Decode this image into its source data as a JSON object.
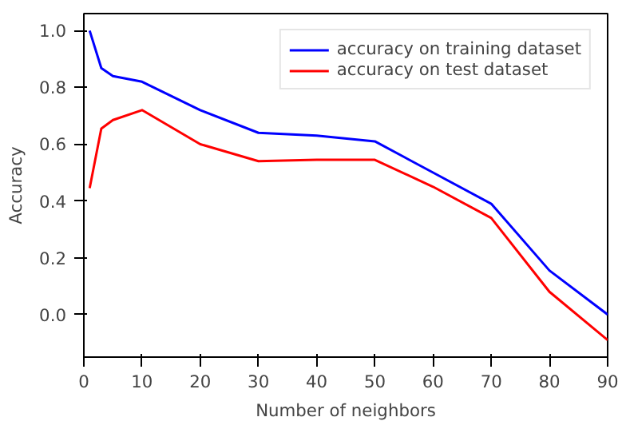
{
  "chart_data": {
    "type": "line",
    "xlabel": "Number of neighbors",
    "ylabel": "Accuracy",
    "x": [
      1,
      3,
      5,
      10,
      20,
      30,
      40,
      50,
      60,
      70,
      80,
      90
    ],
    "series": [
      {
        "name": "accuracy on training dataset",
        "color": "#0000ff",
        "values": [
          1.0,
          0.868,
          0.84,
          0.82,
          0.72,
          0.64,
          0.63,
          0.61,
          0.5,
          0.39,
          0.155,
          0.0
        ]
      },
      {
        "name": "accuracy on test dataset",
        "color": "#ff0000",
        "values": [
          0.445,
          0.655,
          0.685,
          0.72,
          0.6,
          0.54,
          0.545,
          0.545,
          0.45,
          0.34,
          0.08,
          -0.09
        ]
      }
    ],
    "xlim": [
      0,
      90
    ],
    "ylim": [
      -0.15,
      1.06
    ],
    "xticks": [
      0,
      10,
      20,
      30,
      40,
      50,
      60,
      70,
      80,
      90
    ],
    "yticks": [
      {
        "value": 0,
        "label": "0.0"
      },
      {
        "value": 0.2,
        "label": "0.2"
      },
      {
        "value": 0.4,
        "label": "0.4"
      },
      {
        "value": 0.6,
        "label": "0.6"
      },
      {
        "value": 0.8,
        "label": "0.8"
      },
      {
        "value": 1,
        "label": "1.0"
      }
    ],
    "legend": "top right",
    "grid": false,
    "marker": "none",
    "line_style": "solid"
  }
}
